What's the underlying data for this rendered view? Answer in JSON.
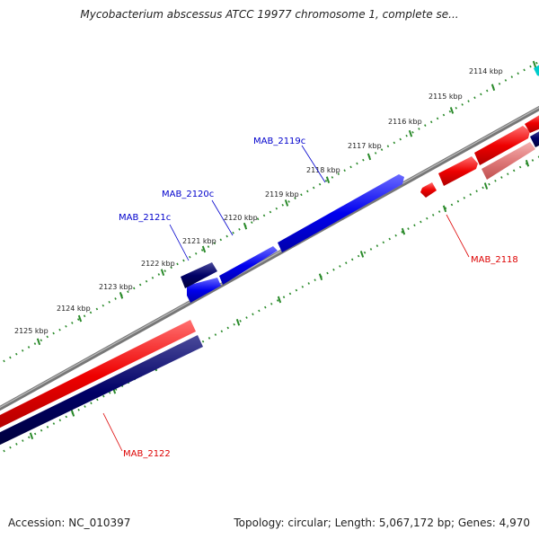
{
  "title": "Mycobacterium abscessus ATCC 19977 chromosome 1, complete se...",
  "footer": {
    "accession": "Accession: NC_010397",
    "summary": "Topology: circular; Length: 5,067,172 bp; Genes: 4,970"
  },
  "ticks": [
    {
      "label": "2114 kbp"
    },
    {
      "label": "2115 kbp"
    },
    {
      "label": "2116 kbp"
    },
    {
      "label": "2117 kbp"
    },
    {
      "label": "2118 kbp"
    },
    {
      "label": "2119 kbp"
    },
    {
      "label": "2120 kbp"
    },
    {
      "label": "2121 kbp"
    },
    {
      "label": "2122 kbp"
    },
    {
      "label": "2123 kbp"
    },
    {
      "label": "2124 kbp"
    },
    {
      "label": "2125 kbp"
    }
  ],
  "gene_labels": [
    {
      "name": "MAB_2119c",
      "strand": "minus"
    },
    {
      "name": "MAB_2120c",
      "strand": "minus"
    },
    {
      "name": "MAB_2121c",
      "strand": "minus"
    },
    {
      "name": "MAB_2118",
      "strand": "plus"
    },
    {
      "name": "MAB_2122",
      "strand": "plus"
    }
  ],
  "colors": {
    "minus_strand": "#0000ee",
    "minus_strand_dark": "#000066",
    "plus_strand": "#ee0000",
    "plus_strand_light": "#e88080",
    "backbone": "#8a8a8a",
    "tick": "#2a8a2a",
    "accent": "#00cccc"
  }
}
